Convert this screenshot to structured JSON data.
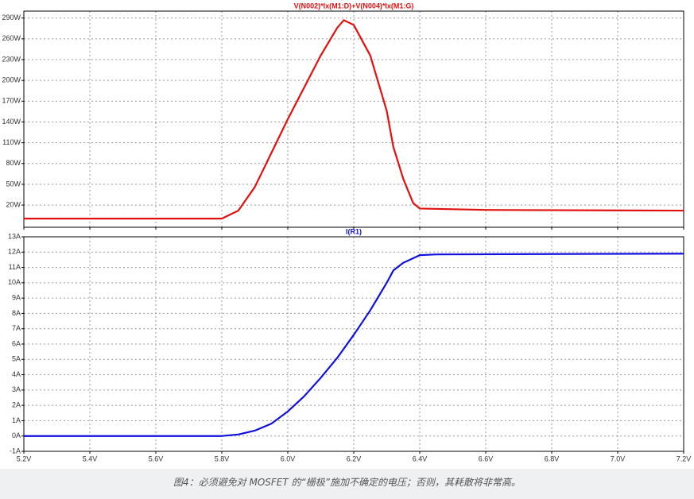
{
  "chart_data": [
    {
      "type": "line",
      "title": "V(N002)*Ix(M1:D)+V(N004)*Ix(M1:G)",
      "x": [
        5.2,
        5.8,
        5.85,
        5.9,
        5.95,
        6.0,
        6.05,
        6.1,
        6.15,
        6.17,
        6.2,
        6.25,
        6.3,
        6.32,
        6.35,
        6.38,
        6.4,
        6.6,
        7.2
      ],
      "series": [
        {
          "name": "V(N002)*Ix(M1:D)+V(N004)*Ix(M1:G)",
          "color": "#e31010",
          "values": [
            0.5,
            0.5,
            12,
            46,
            95,
            144,
            190,
            236,
            276,
            287,
            280,
            236,
            156,
            104,
            58,
            23,
            15,
            13,
            12
          ]
        }
      ],
      "xlim": [
        5.2,
        7.2
      ],
      "xticks": [
        5.2,
        5.4,
        5.6,
        5.8,
        6.0,
        6.2,
        6.4,
        6.6,
        6.8,
        7.0,
        7.2
      ],
      "ylim": [
        -12,
        300
      ],
      "yticks": [
        {
          "value": 20,
          "label": "20W"
        },
        {
          "value": 50,
          "label": "50W"
        },
        {
          "value": 80,
          "label": "80W"
        },
        {
          "value": 110,
          "label": "110W"
        },
        {
          "value": 140,
          "label": "140W"
        },
        {
          "value": 170,
          "label": "170W"
        },
        {
          "value": 200,
          "label": "200W"
        },
        {
          "value": 230,
          "label": "230W"
        },
        {
          "value": 260,
          "label": "260W"
        },
        {
          "value": 290,
          "label": "290W"
        }
      ],
      "grid": true
    },
    {
      "type": "line",
      "title": "I(R1)",
      "x": [
        5.2,
        5.8,
        5.85,
        5.9,
        5.95,
        6.0,
        6.05,
        6.1,
        6.15,
        6.2,
        6.25,
        6.3,
        6.32,
        6.35,
        6.4,
        6.45,
        7.2
      ],
      "series": [
        {
          "name": "I(R1)",
          "color": "#1010e0",
          "values": [
            0,
            0,
            0.1,
            0.35,
            0.8,
            1.6,
            2.6,
            3.8,
            5.1,
            6.6,
            8.2,
            10.0,
            10.8,
            11.3,
            11.8,
            11.85,
            11.9
          ]
        }
      ],
      "xlim": [
        5.2,
        7.2
      ],
      "xticks": [
        {
          "value": 5.2,
          "label": "5.2V"
        },
        {
          "value": 5.4,
          "label": "5.4V"
        },
        {
          "value": 5.6,
          "label": "5.6V"
        },
        {
          "value": 5.8,
          "label": "5.8V"
        },
        {
          "value": 6.0,
          "label": "6.0V"
        },
        {
          "value": 6.2,
          "label": "6.2V"
        },
        {
          "value": 6.4,
          "label": "6.4V"
        },
        {
          "value": 6.6,
          "label": "6.6V"
        },
        {
          "value": 6.8,
          "label": "6.8V"
        },
        {
          "value": 7.0,
          "label": "7.0V"
        },
        {
          "value": 7.2,
          "label": "7.2V"
        }
      ],
      "ylim": [
        -1,
        13
      ],
      "yticks": [
        {
          "value": -1,
          "label": "-1A"
        },
        {
          "value": 0,
          "label": "0A"
        },
        {
          "value": 1,
          "label": "1A"
        },
        {
          "value": 2,
          "label": "2A"
        },
        {
          "value": 3,
          "label": "3A"
        },
        {
          "value": 4,
          "label": "4A"
        },
        {
          "value": 5,
          "label": "5A"
        },
        {
          "value": 6,
          "label": "6A"
        },
        {
          "value": 7,
          "label": "7A"
        },
        {
          "value": 8,
          "label": "8A"
        },
        {
          "value": 9,
          "label": "9A"
        },
        {
          "value": 10,
          "label": "10A"
        },
        {
          "value": 11,
          "label": "11A"
        },
        {
          "value": 12,
          "label": "12A"
        },
        {
          "value": 13,
          "label": "13A"
        }
      ],
      "grid": true
    }
  ],
  "caption": "图4：必须避免对 MOSFET 的“栅极”施加不确定的电压；否则，其耗散将非常高。"
}
